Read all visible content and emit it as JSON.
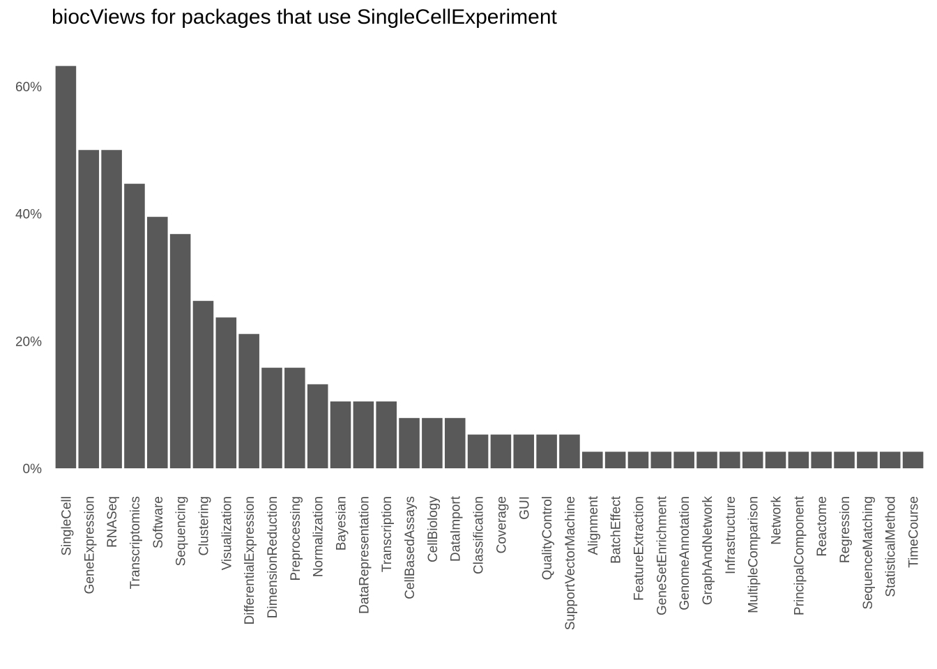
{
  "chart_data": {
    "type": "bar",
    "title": "biocViews for packages that use SingleCellExperiment",
    "xlabel": "",
    "ylabel": "",
    "ylim": [
      0,
      0.632
    ],
    "y_ticks": [
      {
        "value": 0.0,
        "label": "0%"
      },
      {
        "value": 0.2,
        "label": "20%"
      },
      {
        "value": 0.4,
        "label": "40%"
      },
      {
        "value": 0.6,
        "label": "60%"
      }
    ],
    "grid": false,
    "bar_color": "#595959",
    "categories": [
      "SingleCell",
      "GeneExpression",
      "RNASeq",
      "Transcriptomics",
      "Software",
      "Sequencing",
      "Clustering",
      "Visualization",
      "DifferentialExpression",
      "DimensionReduction",
      "Preprocessing",
      "Normalization",
      "Bayesian",
      "DataRepresentation",
      "Transcription",
      "CellBasedAssays",
      "CellBiology",
      "DataImport",
      "Classification",
      "Coverage",
      "GUI",
      "QualityControl",
      "SupportVectorMachine",
      "Alignment",
      "BatchEffect",
      "FeatureExtraction",
      "GeneSetEnrichment",
      "GenomeAnnotation",
      "GraphAndNetwork",
      "Infrastructure",
      "MultipleComparison",
      "Network",
      "PrincipalComponent",
      "Reactome",
      "Regression",
      "SequenceMatching",
      "StatisticalMethod",
      "TimeCourse"
    ],
    "values": [
      0.632,
      0.5,
      0.5,
      0.447,
      0.395,
      0.368,
      0.263,
      0.237,
      0.211,
      0.158,
      0.158,
      0.132,
      0.105,
      0.105,
      0.105,
      0.079,
      0.079,
      0.079,
      0.053,
      0.053,
      0.053,
      0.053,
      0.053,
      0.026,
      0.026,
      0.026,
      0.026,
      0.026,
      0.026,
      0.026,
      0.026,
      0.026,
      0.026,
      0.026,
      0.026,
      0.026,
      0.026,
      0.026
    ]
  }
}
